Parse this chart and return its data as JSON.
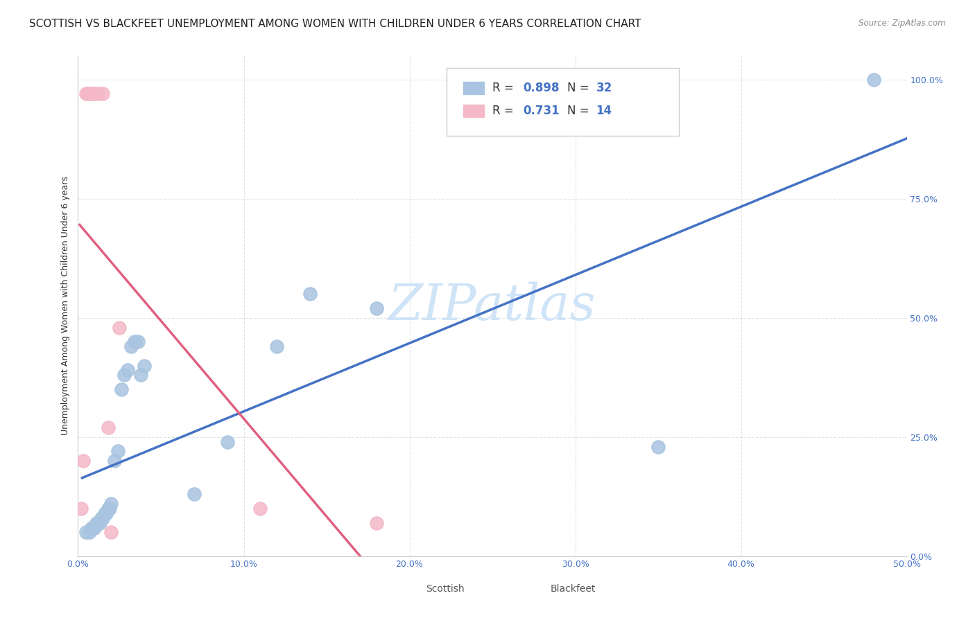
{
  "title": "SCOTTISH VS BLACKFEET UNEMPLOYMENT AMONG WOMEN WITH CHILDREN UNDER 6 YEARS CORRELATION CHART",
  "source": "Source: ZipAtlas.com",
  "ylabel": "Unemployment Among Women with Children Under 6 years",
  "xlabel_ticks": [
    "0.0%",
    "10.0%",
    "20.0%",
    "30.0%",
    "40.0%",
    "50.0%"
  ],
  "ylabel_ticks": [
    "0.0%",
    "25.0%",
    "50.0%",
    "75.0%",
    "100.0%"
  ],
  "xlim": [
    0.0,
    0.5
  ],
  "ylim": [
    0.0,
    1.05
  ],
  "scottish_x": [
    0.005,
    0.007,
    0.008,
    0.009,
    0.01,
    0.011,
    0.012,
    0.013,
    0.014,
    0.015,
    0.016,
    0.017,
    0.018,
    0.019,
    0.02,
    0.022,
    0.024,
    0.026,
    0.028,
    0.03,
    0.032,
    0.034,
    0.036,
    0.038,
    0.04,
    0.07,
    0.09,
    0.12,
    0.14,
    0.18,
    0.35,
    0.48
  ],
  "scottish_y": [
    0.05,
    0.05,
    0.06,
    0.06,
    0.06,
    0.07,
    0.07,
    0.07,
    0.08,
    0.08,
    0.09,
    0.09,
    0.1,
    0.1,
    0.11,
    0.2,
    0.22,
    0.35,
    0.38,
    0.39,
    0.44,
    0.45,
    0.45,
    0.38,
    0.4,
    0.13,
    0.24,
    0.44,
    0.55,
    0.52,
    0.23,
    1.0
  ],
  "blackfeet_x": [
    0.002,
    0.003,
    0.005,
    0.006,
    0.007,
    0.008,
    0.01,
    0.012,
    0.015,
    0.018,
    0.02,
    0.025,
    0.11,
    0.18
  ],
  "blackfeet_y": [
    0.1,
    0.2,
    0.97,
    0.97,
    0.97,
    0.97,
    0.97,
    0.97,
    0.97,
    0.27,
    0.05,
    0.48,
    0.1,
    0.07
  ],
  "scottish_color": "#a8c4e0",
  "blackfeet_color": "#f4b8c8",
  "scottish_line_color": "#4472c4",
  "blackfeet_line_color": "#e06080",
  "scottish_R": "0.898",
  "scottish_N": "32",
  "blackfeet_R": "0.731",
  "blackfeet_N": "14",
  "watermark": "ZIPatlas",
  "watermark_color": "#d0e4f7",
  "title_fontsize": 11,
  "axis_label_fontsize": 9,
  "tick_fontsize": 9,
  "legend_fontsize": 11
}
